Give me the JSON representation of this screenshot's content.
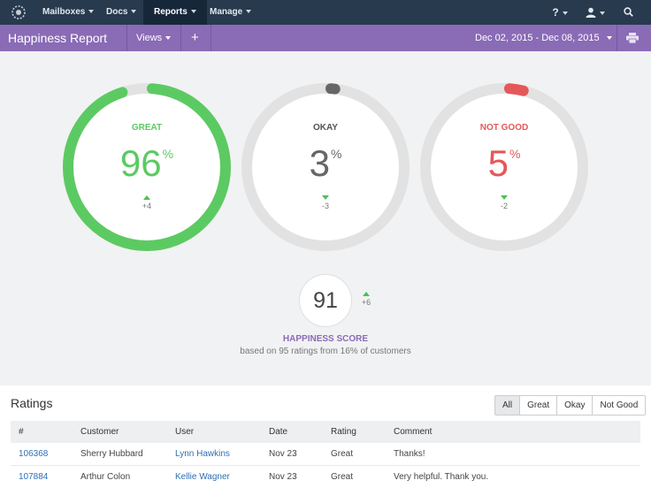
{
  "nav": {
    "items": [
      {
        "label": "Mailboxes"
      },
      {
        "label": "Docs"
      },
      {
        "label": "Reports"
      },
      {
        "label": "Manage"
      }
    ],
    "help_label": "?"
  },
  "header": {
    "title": "Happiness Report",
    "views_label": "Views",
    "add_label": "+",
    "date_range": "Dec 02, 2015 - Dec 08, 2015"
  },
  "rings": [
    {
      "label": "GREAT",
      "value": "96",
      "unit": "%",
      "delta": "+4",
      "percent": 96,
      "color": "#5cca62"
    },
    {
      "label": "OKAY",
      "value": "3",
      "unit": "%",
      "delta": "-3",
      "percent": 3,
      "color": "#666666"
    },
    {
      "label": "NOT GOOD",
      "value": "5",
      "unit": "%",
      "delta": "-2",
      "percent": 5,
      "color": "#e4585a"
    }
  ],
  "score": {
    "value": "91",
    "delta": "+6",
    "title": "HAPPINESS SCORE",
    "subtitle": "based on 95 ratings from 16% of customers"
  },
  "ratings": {
    "title": "Ratings",
    "filters": [
      "All",
      "Great",
      "Okay",
      "Not Good"
    ],
    "columns": [
      "#",
      "Customer",
      "User",
      "Date",
      "Rating",
      "Comment"
    ],
    "rows": [
      {
        "id": "106368",
        "customer": "Sherry Hubbard",
        "user": "Lynn Hawkins",
        "date": "Nov 23",
        "rating": "Great",
        "comment": "Thanks!"
      },
      {
        "id": "107884",
        "customer": "Arthur Colon",
        "user": "Kellie Wagner",
        "date": "Nov 23",
        "rating": "Great",
        "comment": "Very helpful. Thank you."
      }
    ]
  },
  "colors": {
    "nav_bg": "#273a4e",
    "accent": "#8a6bb6",
    "great": "#5cca62",
    "okay": "#666666",
    "not_good": "#e4585a",
    "ring_track": "#e2e2e2"
  }
}
